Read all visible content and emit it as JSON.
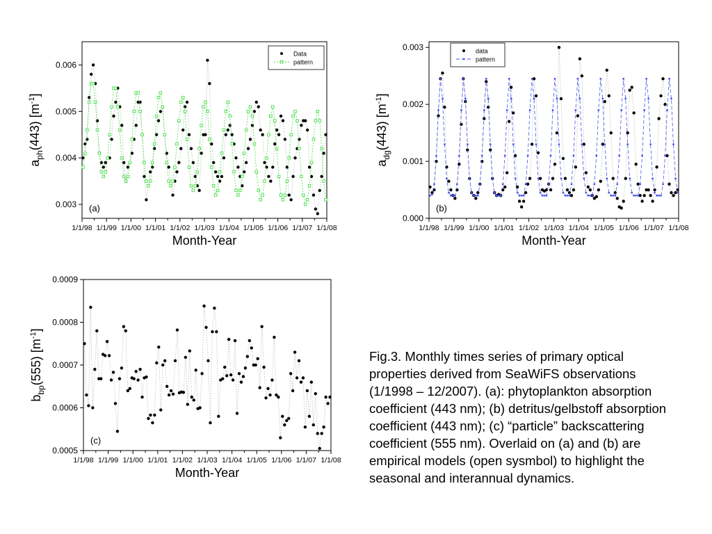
{
  "chart_data": [
    {
      "type": "scatter",
      "panel_label": "(a)",
      "ylabel_main": "a",
      "ylabel_sub": "ph",
      "ylabel_rest": "(443)  [m",
      "ylabel_sup": "-1",
      "ylabel_close": "]",
      "xlabel": "Month-Year",
      "xtick_labels": [
        "1/1/98",
        "1/1/99",
        "1/1/00",
        "1/1/01",
        "1/1/02",
        "1/1/03",
        "1/1/04",
        "1/1/05",
        "1/1/06",
        "1/1/07",
        "1/1/08"
      ],
      "xlim": [
        0,
        120
      ],
      "ylim": [
        0.0027,
        0.0065
      ],
      "yticks": [
        0.003,
        0.004,
        0.005,
        0.006
      ],
      "ytick_labels": [
        "0.003",
        "0.004",
        "0.005",
        "0.006"
      ],
      "legend_position": "top-right",
      "legend": [
        "Data",
        "pattern"
      ],
      "series": [
        {
          "name": "Data",
          "marker": "filled-circle",
          "color": "#000000",
          "values": [
            0.004,
            0.0043,
            0.0044,
            0.0053,
            0.0058,
            0.006,
            0.0056,
            0.0048,
            0.0041,
            0.0039,
            0.0038,
            0.0039,
            0.004,
            0.004,
            0.0044,
            0.0049,
            0.0052,
            0.0055,
            0.0051,
            0.0047,
            0.0039,
            0.0035,
            0.0038,
            0.0039,
            0.0041,
            0.0044,
            0.0047,
            0.0052,
            0.0052,
            0.0045,
            0.0036,
            0.0031,
            0.0034,
            0.0037,
            0.0038,
            0.0042,
            0.0045,
            0.0048,
            0.005,
            0.0051,
            0.0045,
            0.0041,
            0.0038,
            0.0034,
            0.0032,
            0.0035,
            0.0037,
            0.0039,
            0.0042,
            0.0046,
            0.0051,
            0.0052,
            0.0045,
            0.0042,
            0.0039,
            0.0036,
            0.0034,
            0.0033,
            0.0041,
            0.0045,
            0.0045,
            0.0061,
            0.0056,
            0.0043,
            0.0039,
            0.0037,
            0.0036,
            0.0035,
            0.0036,
            0.004,
            0.0045,
            0.0046,
            0.0047,
            0.0045,
            0.0043,
            0.004,
            0.0038,
            0.0036,
            0.0034,
            0.0037,
            0.0039,
            0.0042,
            0.0044,
            0.0047,
            0.005,
            0.0052,
            0.0051,
            0.0046,
            0.0045,
            0.0039,
            0.0038,
            0.0036,
            0.0035,
            0.0038,
            0.0043,
            0.0046,
            0.0045,
            0.0049,
            0.0048,
            0.0044,
            0.0038,
            0.0032,
            0.0031,
            0.0036,
            0.004,
            0.0042,
            0.0044,
            0.0047,
            0.0048,
            0.0048,
            0.0046,
            0.0038,
            0.0036,
            0.0032,
            0.0029,
            0.0028,
            0.0033,
            0.0036,
            0.0041,
            0.0045
          ]
        },
        {
          "name": "pattern",
          "marker": "open-square",
          "color": "#44dd44",
          "values": [
            0.0038,
            0.0041,
            0.0046,
            0.0052,
            0.0056,
            0.0056,
            0.0052,
            0.0046,
            0.0041,
            0.0037,
            0.0036,
            0.0037,
            0.004,
            0.0045,
            0.0051,
            0.0055,
            0.0055,
            0.0051,
            0.0046,
            0.004,
            0.0036,
            0.0035,
            0.0036,
            0.0039,
            0.0044,
            0.005,
            0.0054,
            0.0054,
            0.005,
            0.0045,
            0.0039,
            0.0035,
            0.0034,
            0.0035,
            0.0039,
            0.0043,
            0.0049,
            0.0053,
            0.0054,
            0.0051,
            0.0045,
            0.0039,
            0.0035,
            0.0034,
            0.0035,
            0.0038,
            0.0043,
            0.0048,
            0.0052,
            0.0053,
            0.005,
            0.0044,
            0.0038,
            0.0034,
            0.0033,
            0.0034,
            0.0037,
            0.0042,
            0.0047,
            0.0051,
            0.0052,
            0.005,
            0.0044,
            0.0038,
            0.0034,
            0.0032,
            0.0033,
            0.0037,
            0.0041,
            0.0046,
            0.005,
            0.0052,
            0.0049,
            0.0043,
            0.0037,
            0.0033,
            0.0032,
            0.0033,
            0.0036,
            0.0041,
            0.0046,
            0.005,
            0.0051,
            0.0049,
            0.0043,
            0.0037,
            0.0033,
            0.0031,
            0.0032,
            0.0035,
            0.004,
            0.0045,
            0.0049,
            0.0051,
            0.0048,
            0.0042,
            0.0036,
            0.0032,
            0.0031,
            0.0032,
            0.0035,
            0.004,
            0.0045,
            0.0049,
            0.005,
            0.0048,
            0.0042,
            0.0036,
            0.0032,
            0.003,
            0.0031,
            0.0034,
            0.0039,
            0.0044,
            0.0048,
            0.005,
            0.0048,
            0.0042,
            0.0035,
            0.0031
          ]
        }
      ]
    },
    {
      "type": "scatter",
      "panel_label": "(b)",
      "ylabel_main": "a",
      "ylabel_sub": "dg",
      "ylabel_rest": "(443)  [m",
      "ylabel_sup": "-1",
      "ylabel_close": "]",
      "xlabel": "Month-Year",
      "xtick_labels": [
        "1/1/98",
        "1/1/99",
        "1/1/00",
        "1/1/01",
        "1/1/02",
        "1/1/03",
        "1/1/04",
        "1/1/05",
        "1/1/06",
        "1/1/07",
        "1/1/08"
      ],
      "xlim": [
        0,
        120
      ],
      "ylim": [
        0.0,
        0.0031
      ],
      "yticks": [
        0.0,
        0.001,
        0.002,
        0.003
      ],
      "ytick_labels": [
        "0.000",
        "0.001",
        "0.002",
        "0.003"
      ],
      "legend_position": "top-left",
      "legend": [
        "data",
        "pattern"
      ],
      "series": [
        {
          "name": "data",
          "marker": "filled-circle",
          "color": "#000000",
          "values": [
            0.00055,
            0.00045,
            0.0005,
            0.001,
            0.0018,
            0.00245,
            0.00255,
            0.00195,
            0.0009,
            0.00065,
            0.0005,
            0.0004,
            0.00035,
            0.0005,
            0.00095,
            0.00165,
            0.00245,
            0.00205,
            0.0012,
            0.0007,
            0.00045,
            0.0004,
            0.00035,
            0.00045,
            0.0006,
            0.001,
            0.00175,
            0.0024,
            0.00195,
            0.0012,
            0.0007,
            0.00045,
            0.0004,
            0.00042,
            0.0004,
            0.0005,
            0.00055,
            0.0008,
            0.0017,
            0.0023,
            0.00185,
            0.0011,
            0.00055,
            0.0003,
            0.0002,
            0.0003,
            0.00045,
            0.0006,
            0.0007,
            0.0013,
            0.00245,
            0.00215,
            0.00115,
            0.0007,
            0.0005,
            0.00048,
            0.0005,
            0.0006,
            0.0005,
            0.0007,
            0.00095,
            0.0015,
            0.003,
            0.0021,
            0.00105,
            0.0007,
            0.0005,
            0.00045,
            0.0004,
            0.0005,
            0.0009,
            0.0018,
            0.0028,
            0.0025,
            0.0013,
            0.0008,
            0.00055,
            0.0005,
            0.0004,
            0.00035,
            0.00038,
            0.0005,
            0.00065,
            0.0013,
            0.00205,
            0.0026,
            0.00215,
            0.0015,
            0.0007,
            0.00045,
            0.00035,
            0.0002,
            0.00018,
            0.0003,
            0.0007,
            0.0015,
            0.00225,
            0.0023,
            0.00185,
            0.00095,
            0.0006,
            0.0004,
            0.0003,
            0.0004,
            0.0005,
            0.0005,
            0.0004,
            0.0003,
            0.0005,
            0.0009,
            0.00175,
            0.00215,
            0.00245,
            0.002,
            0.0011,
            0.0006,
            0.00045,
            0.0004,
            0.00045,
            0.0005
          ]
        },
        {
          "name": "pattern",
          "marker": "small-circle",
          "color": "#4455ee",
          "values": [
            0.0004,
            0.00042,
            0.0006,
            0.0011,
            0.0019,
            0.00245,
            0.0021,
            0.0013,
            0.0007,
            0.00045,
            0.0004,
            0.0004,
            0.0004,
            0.0006,
            0.0011,
            0.0019,
            0.00245,
            0.0021,
            0.0013,
            0.0007,
            0.00045,
            0.0004,
            0.0004,
            0.0004,
            0.0006,
            0.0011,
            0.0019,
            0.00245,
            0.0021,
            0.0013,
            0.0007,
            0.00045,
            0.0004,
            0.0004,
            0.0004,
            0.0006,
            0.0011,
            0.0019,
            0.00245,
            0.0021,
            0.0013,
            0.0007,
            0.00045,
            0.0004,
            0.0004,
            0.0004,
            0.0006,
            0.0011,
            0.0019,
            0.00245,
            0.0021,
            0.0013,
            0.0007,
            0.00045,
            0.0004,
            0.0004,
            0.0004,
            0.0006,
            0.0011,
            0.0019,
            0.00245,
            0.0021,
            0.0013,
            0.0007,
            0.00045,
            0.0004,
            0.0004,
            0.0004,
            0.0006,
            0.0011,
            0.0019,
            0.00245,
            0.0021,
            0.0013,
            0.0007,
            0.00045,
            0.0004,
            0.0004,
            0.0004,
            0.0006,
            0.0011,
            0.0019,
            0.00245,
            0.0021,
            0.0013,
            0.0007,
            0.00045,
            0.0004,
            0.0004,
            0.0004,
            0.0006,
            0.0011,
            0.0019,
            0.00245,
            0.0021,
            0.0013,
            0.0007,
            0.00045,
            0.0004,
            0.0004,
            0.0004,
            0.0006,
            0.0011,
            0.0019,
            0.00245,
            0.0021,
            0.0013,
            0.0007,
            0.00045,
            0.0004,
            0.0004,
            0.0004,
            0.0006,
            0.0011,
            0.0019,
            0.00245,
            0.0021,
            0.0013,
            0.0007,
            0.00045
          ]
        }
      ]
    },
    {
      "type": "scatter",
      "panel_label": "(c)",
      "ylabel_main": "b",
      "ylabel_sub": "bp",
      "ylabel_rest": "(555)  [m",
      "ylabel_sup": "-1",
      "ylabel_close": "]",
      "xlabel": "Month-Year",
      "xtick_labels": [
        "1/1/98",
        "1/1/99",
        "1/1/00",
        "1/1/01",
        "1/1/02",
        "1/1/03",
        "1/1/04",
        "1/1/05",
        "1/1/06",
        "1/1/07",
        "1/1/08"
      ],
      "xlim": [
        0,
        120
      ],
      "ylim": [
        0.0005,
        0.0009
      ],
      "yticks": [
        0.0005,
        0.0006,
        0.0007,
        0.0008,
        0.0009
      ],
      "ytick_labels": [
        "0.0005",
        "0.0006",
        "0.0007",
        "0.0008",
        "0.0009"
      ],
      "series": [
        {
          "name": "",
          "marker": "filled-circle",
          "color": "#000000",
          "values": [
            0.00075,
            0.00063,
            0.000605,
            0.000835,
            0.0006,
            0.00069,
            0.00078,
            0.000668,
            0.000668,
            0.000725,
            0.000722,
            0.000755,
            0.000722,
            0.000665,
            0.000683,
            0.00061,
            0.000545,
            0.000668,
            0.000693,
            0.00079,
            0.00078,
            0.00064,
            0.000645,
            0.00067,
            0.000668,
            0.000685,
            0.000665,
            0.00069,
            0.000625,
            0.00067,
            0.000672,
            0.000575,
            0.000583,
            0.000565,
            0.000583,
            0.000705,
            0.000742,
            0.000595,
            0.0007,
            0.00071,
            0.00065,
            0.00063,
            0.00064,
            0.000632,
            0.00071,
            0.000782,
            0.000635,
            0.000637,
            0.000636,
            0.000718,
            0.000608,
            0.000733,
            0.000625,
            0.000618,
            0.000688,
            0.000598,
            0.0006,
            0.00068,
            0.000838,
            0.000788,
            0.00071,
            0.000565,
            0.000778,
            0.000833,
            0.000778,
            0.00058,
            0.000665,
            0.000668,
            0.000695,
            0.000675,
            0.00076,
            0.000677,
            0.000665,
            0.000757,
            0.000587,
            0.00068,
            0.00066,
            0.000673,
            0.000693,
            0.00072,
            0.000757,
            0.00074,
            0.0007,
            0.0007,
            0.000715,
            0.000647,
            0.00079,
            0.000695,
            0.000623,
            0.000645,
            0.00063,
            0.000665,
            0.000765,
            0.00063,
            0.000625,
            0.00053,
            0.00058,
            0.00056,
            0.00057,
            0.000575,
            0.00068,
            0.00064,
            0.00073,
            0.00067,
            0.00071,
            0.00066,
            0.00067,
            0.000555,
            0.00064,
            0.00058,
            0.00066,
            0.00056,
            0.000633,
            0.00054,
            0.000505,
            0.00054,
            0.000555,
            0.000625,
            0.00061,
            0.000625
          ]
        }
      ]
    }
  ],
  "caption": "Fig.3. Monthly times series of primary optical properties derived from SeaWiFS observations (1/1998 – 12/2007). (a): phytoplankton absorption coefficient (443 nm); (b) detritus/gelbstoff absorption coefficient (443 nm); (c) “particle” backscattering coefficient (555 nm). Overlaid on (a) and (b) are empirical models (open sysmbol) to highlight the seasonal and interannual dynamics."
}
